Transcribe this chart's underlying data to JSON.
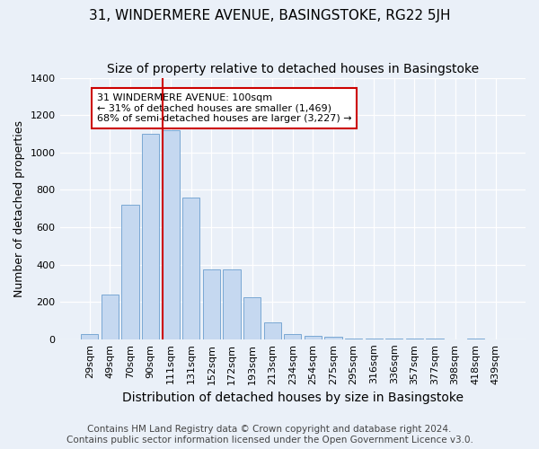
{
  "title": "31, WINDERMERE AVENUE, BASINGSTOKE, RG22 5JH",
  "subtitle": "Size of property relative to detached houses in Basingstoke",
  "xlabel": "Distribution of detached houses by size in Basingstoke",
  "ylabel": "Number of detached properties",
  "categories": [
    "29sqm",
    "49sqm",
    "70sqm",
    "90sqm",
    "111sqm",
    "131sqm",
    "152sqm",
    "172sqm",
    "193sqm",
    "213sqm",
    "234sqm",
    "254sqm",
    "275sqm",
    "295sqm",
    "316sqm",
    "336sqm",
    "357sqm",
    "377sqm",
    "398sqm",
    "418sqm",
    "439sqm"
  ],
  "values": [
    30,
    240,
    720,
    1100,
    1120,
    760,
    375,
    375,
    225,
    90,
    30,
    20,
    15,
    5,
    5,
    5,
    5,
    5,
    0,
    5,
    0
  ],
  "bar_color": "#c5d8f0",
  "bar_edge_color": "#7aa8d4",
  "vline_color": "#cc0000",
  "vline_x_index": 4,
  "annotation_text": "31 WINDERMERE AVENUE: 100sqm\n← 31% of detached houses are smaller (1,469)\n68% of semi-detached houses are larger (3,227) →",
  "annotation_box_color": "#ffffff",
  "annotation_box_edge": "#cc0000",
  "ylim": [
    0,
    1400
  ],
  "yticks": [
    0,
    200,
    400,
    600,
    800,
    1000,
    1200,
    1400
  ],
  "footnote": "Contains HM Land Registry data © Crown copyright and database right 2024.\nContains public sector information licensed under the Open Government Licence v3.0.",
  "bg_color": "#eaf0f8",
  "plot_bg_color": "#eaf0f8",
  "title_fontsize": 11,
  "subtitle_fontsize": 10,
  "xlabel_fontsize": 10,
  "ylabel_fontsize": 9,
  "tick_fontsize": 8,
  "annotation_fontsize": 8,
  "footnote_fontsize": 7.5
}
